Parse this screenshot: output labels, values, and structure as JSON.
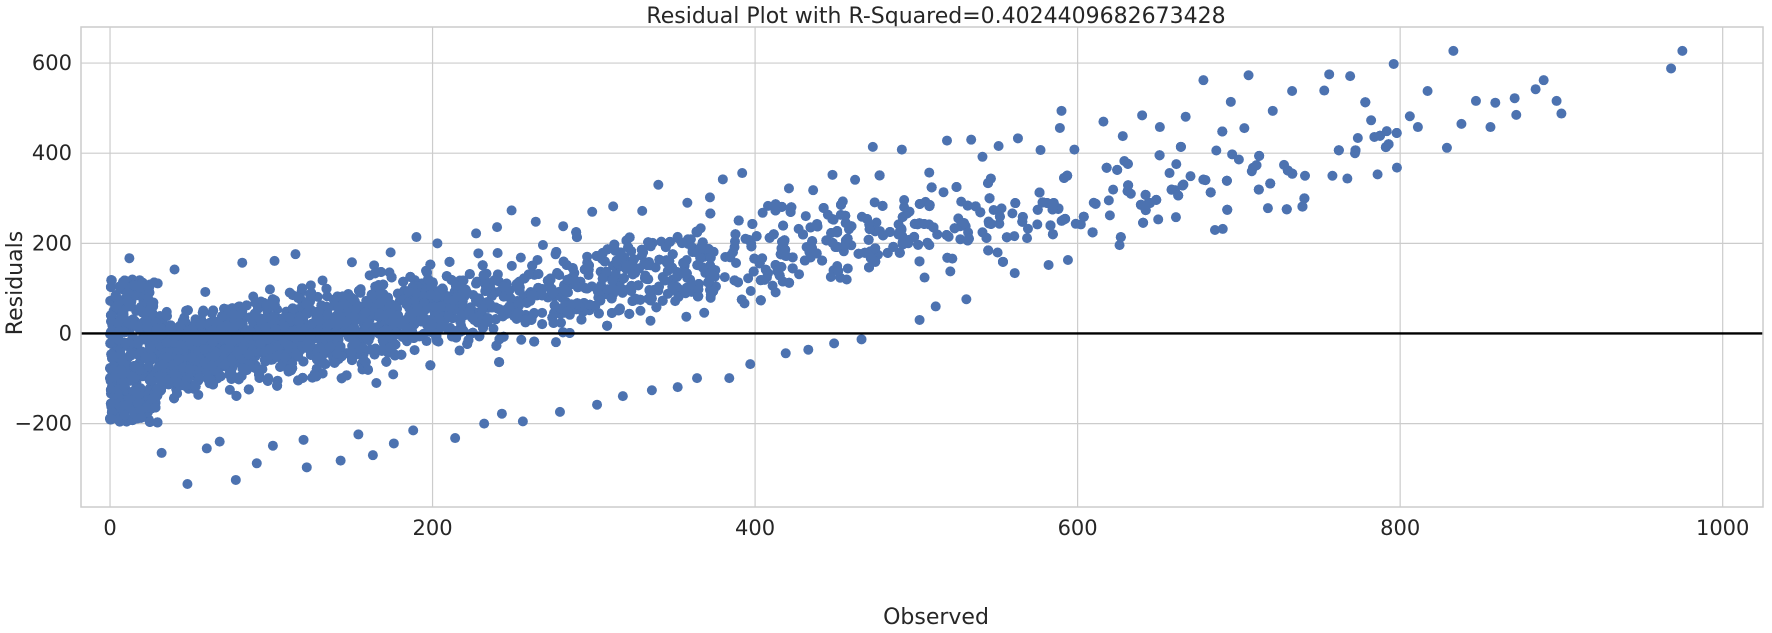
{
  "chart_data": {
    "type": "scatter",
    "title": "Residual Plot with R-Squared=0.4024409682673428",
    "xlabel": "Observed",
    "ylabel": "Residuals",
    "xlim": [
      -18,
      1025
    ],
    "ylim": [
      -385,
      680
    ],
    "xticks": [
      0,
      200,
      400,
      600,
      800,
      1000
    ],
    "xtick_labels": [
      "0",
      "200",
      "400",
      "600",
      "800",
      "1000"
    ],
    "yticks": [
      -200,
      0,
      200,
      400,
      600
    ],
    "ytick_labels": [
      "−200",
      "0",
      "200",
      "400",
      "600"
    ],
    "grid": true,
    "reference_line": {
      "y": 0,
      "color": "#000000"
    },
    "marker_color": "#4c72b0",
    "approx_trend": {
      "slope": 0.6,
      "intercept": -70
    },
    "series": [
      {
        "points": [
          [
            48,
            -334
          ],
          [
            78,
            -325
          ],
          [
            122,
            -297
          ],
          [
            91,
            -288
          ],
          [
            143,
            -282
          ],
          [
            163,
            -270
          ],
          [
            32,
            -265
          ],
          [
            60,
            -255
          ],
          [
            101,
            -249
          ],
          [
            176,
            -244
          ],
          [
            68,
            -240
          ],
          [
            120,
            -236
          ],
          [
            154,
            -224
          ],
          [
            188,
            -215
          ],
          [
            214,
            -232
          ],
          [
            232,
            -200
          ],
          [
            256,
            -195
          ],
          [
            243,
            -178
          ],
          [
            279,
            -174
          ],
          [
            302,
            -158
          ],
          [
            318,
            -139
          ],
          [
            336,
            -126
          ],
          [
            352,
            -119
          ],
          [
            364,
            -99
          ],
          [
            384,
            -99
          ],
          [
            397,
            -68
          ],
          [
            419,
            -44
          ],
          [
            433,
            -36
          ],
          [
            449,
            -22
          ],
          [
            466,
            -13
          ],
          [
            502,
            30
          ],
          [
            512,
            60
          ],
          [
            531,
            76
          ],
          [
            561,
            134
          ],
          [
            582,
            152
          ],
          [
            594,
            163
          ],
          [
            626,
            196
          ],
          [
            690,
            232
          ],
          [
            718,
            278
          ],
          [
            786,
            353
          ],
          [
            12,
            167
          ],
          [
            40,
            142
          ],
          [
            82,
            157
          ],
          [
            102,
            161
          ],
          [
            115,
            176
          ],
          [
            150,
            158
          ],
          [
            174,
            180
          ],
          [
            190,
            214
          ],
          [
            203,
            200
          ],
          [
            227,
            222
          ],
          [
            240,
            236
          ],
          [
            249,
            273
          ],
          [
            264,
            248
          ],
          [
            281,
            238
          ],
          [
            299,
            270
          ],
          [
            312,
            282
          ],
          [
            330,
            272
          ],
          [
            340,
            330
          ],
          [
            358,
            290
          ],
          [
            372,
            302
          ],
          [
            380,
            342
          ],
          [
            392,
            356
          ],
          [
            408,
            283
          ],
          [
            421,
            322
          ],
          [
            436,
            318
          ],
          [
            448,
            352
          ],
          [
            462,
            341
          ],
          [
            473,
            414
          ],
          [
            491,
            408
          ],
          [
            508,
            357
          ],
          [
            519,
            428
          ],
          [
            534,
            430
          ],
          [
            541,
            392
          ],
          [
            551,
            416
          ],
          [
            563,
            433
          ],
          [
            577,
            407
          ],
          [
            589,
            456
          ],
          [
            590,
            494
          ],
          [
            598,
            408
          ],
          [
            616,
            470
          ],
          [
            628,
            438
          ],
          [
            640,
            484
          ],
          [
            651,
            458
          ],
          [
            667,
            481
          ],
          [
            678,
            562
          ],
          [
            695,
            514
          ],
          [
            706,
            573
          ],
          [
            721,
            494
          ],
          [
            733,
            538
          ],
          [
            756,
            575
          ],
          [
            769,
            571
          ],
          [
            782,
            473
          ],
          [
            796,
            598
          ],
          [
            806,
            482
          ],
          [
            817,
            538
          ],
          [
            833,
            627
          ],
          [
            847,
            516
          ],
          [
            859,
            512
          ],
          [
            871,
            522
          ],
          [
            884,
            542
          ],
          [
            889,
            562
          ],
          [
            897,
            516
          ],
          [
            968,
            588
          ],
          [
            975,
            627
          ],
          [
            900,
            488
          ],
          [
            872,
            485
          ],
          [
            856,
            458
          ],
          [
            838,
            465
          ],
          [
            829,
            412
          ],
          [
            811,
            458
          ],
          [
            798,
            368
          ],
          [
            784,
            436
          ],
          [
            772,
            400
          ],
          [
            758,
            350
          ],
          [
            741,
            350
          ],
          [
            728,
            374
          ],
          [
            708,
            360
          ],
          [
            700,
            386
          ],
          [
            686,
            406
          ],
          [
            670,
            349
          ],
          [
            657,
            356
          ],
          [
            644,
            290
          ],
          [
            633,
            310
          ],
          [
            620,
            262
          ],
          [
            610,
            290
          ],
          [
            602,
            242
          ],
          [
            588,
            276
          ],
          [
            575,
            242
          ]
        ]
      }
    ]
  }
}
